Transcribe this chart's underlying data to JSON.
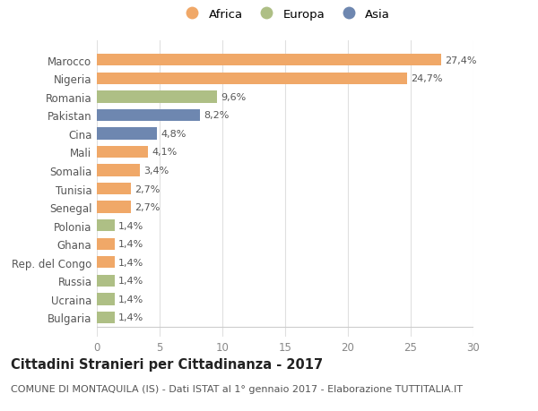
{
  "categories": [
    "Marocco",
    "Nigeria",
    "Romania",
    "Pakistan",
    "Cina",
    "Mali",
    "Somalia",
    "Tunisia",
    "Senegal",
    "Polonia",
    "Ghana",
    "Rep. del Congo",
    "Russia",
    "Ucraina",
    "Bulgaria"
  ],
  "values": [
    27.4,
    24.7,
    9.6,
    8.2,
    4.8,
    4.1,
    3.4,
    2.7,
    2.7,
    1.4,
    1.4,
    1.4,
    1.4,
    1.4,
    1.4
  ],
  "labels": [
    "27,4%",
    "24,7%",
    "9,6%",
    "8,2%",
    "4,8%",
    "4,1%",
    "3,4%",
    "2,7%",
    "2,7%",
    "1,4%",
    "1,4%",
    "1,4%",
    "1,4%",
    "1,4%",
    "1,4%"
  ],
  "continent": [
    "Africa",
    "Africa",
    "Europa",
    "Asia",
    "Asia",
    "Africa",
    "Africa",
    "Africa",
    "Africa",
    "Europa",
    "Africa",
    "Africa",
    "Europa",
    "Europa",
    "Europa"
  ],
  "colors": {
    "Africa": "#F0A868",
    "Europa": "#AEBF85",
    "Asia": "#6E87B0"
  },
  "xlim": [
    0,
    30
  ],
  "xticks": [
    0,
    5,
    10,
    15,
    20,
    25,
    30
  ],
  "title": "Cittadini Stranieri per Cittadinanza - 2017",
  "subtitle": "COMUNE DI MONTAQUILA (IS) - Dati ISTAT al 1° gennaio 2017 - Elaborazione TUTTITALIA.IT",
  "background_color": "#ffffff",
  "plot_bg_color": "#ffffff",
  "grid_color": "#e0e0e0",
  "bar_height": 0.65,
  "label_fontsize": 8,
  "tick_fontsize": 8.5,
  "title_fontsize": 10.5,
  "subtitle_fontsize": 8
}
